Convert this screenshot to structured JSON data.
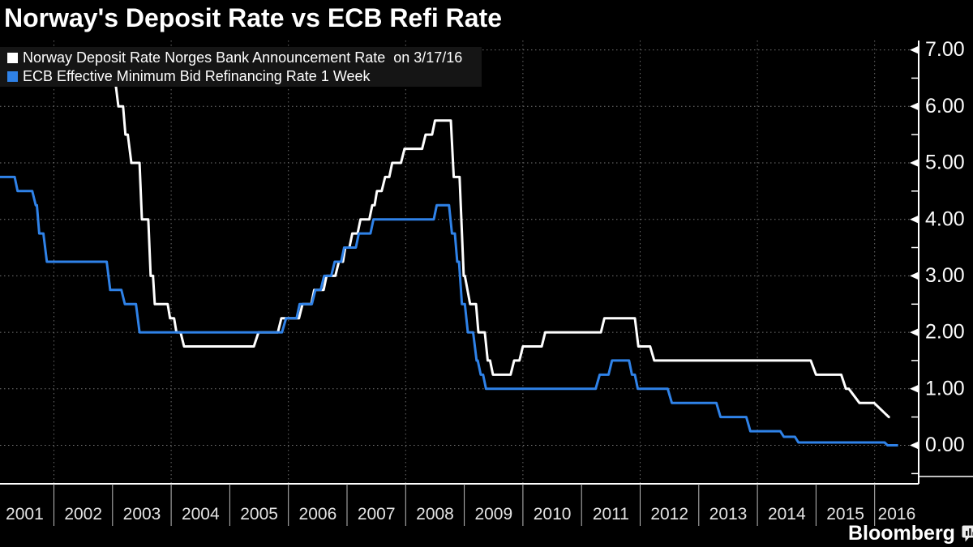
{
  "title": "Norway's Deposit Rate vs ECB Refi Rate",
  "branding": {
    "name": "Bloomberg",
    "icon": "bar-chart-bubble-icon"
  },
  "chart_data": {
    "type": "line",
    "title": "Norway's Deposit Rate vs ECB Refi Rate",
    "legend_position": "top-left",
    "grid": "dotted",
    "x_axis": {
      "tick_labels": [
        "2001",
        "2002",
        "2003",
        "2004",
        "2005",
        "2006",
        "2007",
        "2008",
        "2009",
        "2010",
        "2011",
        "2012",
        "2013",
        "2014",
        "2015",
        "2016"
      ],
      "range_years": [
        2001.08,
        2016.75
      ],
      "gridlines_at_years": [
        2002,
        2004,
        2006,
        2008,
        2010,
        2012,
        2014,
        2016
      ],
      "separators_at_years": [
        2002,
        2003,
        2004,
        2005,
        2006,
        2007,
        2008,
        2009,
        2010,
        2011,
        2012,
        2013,
        2014,
        2015,
        2016
      ]
    },
    "y_axis": {
      "position": "right",
      "tick_labels": [
        "7.00",
        "6.00",
        "5.00",
        "4.00",
        "3.00",
        "2.00",
        "1.00",
        "0.00"
      ],
      "tick_values": [
        7,
        6,
        5,
        4,
        3,
        2,
        1,
        0
      ],
      "minor_tick_values": [
        6.5,
        5.5,
        4.5,
        3.5,
        2.5,
        1.5,
        0.5,
        -0.5
      ],
      "range_displayed": [
        -0.68,
        7.17
      ]
    },
    "series": [
      {
        "name": "Norway Deposit Rate Norges Bank Announcement Rate  on 3/17/16",
        "color": "#ffffff",
        "points": [
          [
            2001.08,
            7
          ],
          [
            2002.93,
            7
          ],
          [
            2002.96,
            6.5
          ],
          [
            2003.04,
            6.5
          ],
          [
            2003.1,
            6
          ],
          [
            2003.18,
            6
          ],
          [
            2003.22,
            5.5
          ],
          [
            2003.26,
            5.5
          ],
          [
            2003.32,
            5
          ],
          [
            2003.46,
            5
          ],
          [
            2003.5,
            4
          ],
          [
            2003.61,
            4
          ],
          [
            2003.65,
            3
          ],
          [
            2003.69,
            3
          ],
          [
            2003.72,
            2.5
          ],
          [
            2003.94,
            2.5
          ],
          [
            2003.98,
            2.25
          ],
          [
            2004.05,
            2.25
          ],
          [
            2004.09,
            2
          ],
          [
            2004.16,
            2
          ],
          [
            2004.22,
            1.75
          ],
          [
            2005.41,
            1.75
          ],
          [
            2005.49,
            2
          ],
          [
            2005.82,
            2
          ],
          [
            2005.88,
            2.25
          ],
          [
            2006.18,
            2.25
          ],
          [
            2006.24,
            2.5
          ],
          [
            2006.39,
            2.5
          ],
          [
            2006.44,
            2.75
          ],
          [
            2006.6,
            2.75
          ],
          [
            2006.65,
            3
          ],
          [
            2006.8,
            3
          ],
          [
            2006.86,
            3.25
          ],
          [
            2006.93,
            3.25
          ],
          [
            2006.97,
            3.5
          ],
          [
            2007.04,
            3.5
          ],
          [
            2007.09,
            3.75
          ],
          [
            2007.18,
            3.75
          ],
          [
            2007.23,
            4
          ],
          [
            2007.38,
            4
          ],
          [
            2007.43,
            4.25
          ],
          [
            2007.47,
            4.25
          ],
          [
            2007.51,
            4.5
          ],
          [
            2007.59,
            4.5
          ],
          [
            2007.65,
            4.75
          ],
          [
            2007.72,
            4.75
          ],
          [
            2007.77,
            5
          ],
          [
            2007.92,
            5
          ],
          [
            2007.98,
            5.25
          ],
          [
            2008.28,
            5.25
          ],
          [
            2008.34,
            5.5
          ],
          [
            2008.45,
            5.5
          ],
          [
            2008.5,
            5.75
          ],
          [
            2008.77,
            5.75
          ],
          [
            2008.82,
            4.75
          ],
          [
            2008.92,
            4.75
          ],
          [
            2008.99,
            3
          ],
          [
            2009.01,
            3
          ],
          [
            2009.1,
            2.5
          ],
          [
            2009.2,
            2.5
          ],
          [
            2009.24,
            2
          ],
          [
            2009.35,
            2
          ],
          [
            2009.4,
            1.5
          ],
          [
            2009.44,
            1.5
          ],
          [
            2009.49,
            1.25
          ],
          [
            2009.79,
            1.25
          ],
          [
            2009.85,
            1.5
          ],
          [
            2009.94,
            1.5
          ],
          [
            2010.0,
            1.75
          ],
          [
            2010.32,
            1.75
          ],
          [
            2010.38,
            2
          ],
          [
            2011.33,
            2
          ],
          [
            2011.39,
            2.25
          ],
          [
            2011.91,
            2.25
          ],
          [
            2011.97,
            1.75
          ],
          [
            2012.17,
            1.75
          ],
          [
            2012.24,
            1.5
          ],
          [
            2014.91,
            1.5
          ],
          [
            2015.0,
            1.25
          ],
          [
            2015.43,
            1.25
          ],
          [
            2015.51,
            1
          ],
          [
            2015.56,
            1
          ],
          [
            2015.74,
            0.75
          ],
          [
            2015.99,
            0.75
          ],
          [
            2016.24,
            0.5
          ],
          [
            2016.26,
            0.5
          ]
        ]
      },
      {
        "name": "ECB Effective Minimum Bid Refinancing Rate 1 Week",
        "color": "#2f82e8",
        "points": [
          [
            2001.08,
            4.75
          ],
          [
            2001.33,
            4.75
          ],
          [
            2001.38,
            4.5
          ],
          [
            2001.63,
            4.5
          ],
          [
            2001.69,
            4.25
          ],
          [
            2001.71,
            4.25
          ],
          [
            2001.75,
            3.75
          ],
          [
            2001.82,
            3.75
          ],
          [
            2001.88,
            3.25
          ],
          [
            2002.9,
            3.25
          ],
          [
            2002.96,
            2.75
          ],
          [
            2003.15,
            2.75
          ],
          [
            2003.21,
            2.5
          ],
          [
            2003.4,
            2.5
          ],
          [
            2003.46,
            2
          ],
          [
            2005.89,
            2
          ],
          [
            2005.96,
            2.25
          ],
          [
            2006.14,
            2.25
          ],
          [
            2006.19,
            2.5
          ],
          [
            2006.4,
            2.5
          ],
          [
            2006.46,
            2.75
          ],
          [
            2006.55,
            2.75
          ],
          [
            2006.61,
            3
          ],
          [
            2006.73,
            3
          ],
          [
            2006.79,
            3.25
          ],
          [
            2006.9,
            3.25
          ],
          [
            2006.95,
            3.5
          ],
          [
            2007.15,
            3.5
          ],
          [
            2007.2,
            3.75
          ],
          [
            2007.4,
            3.75
          ],
          [
            2007.45,
            4
          ],
          [
            2008.48,
            4
          ],
          [
            2008.53,
            4.25
          ],
          [
            2008.74,
            4.25
          ],
          [
            2008.79,
            3.75
          ],
          [
            2008.84,
            3.75
          ],
          [
            2008.88,
            3.25
          ],
          [
            2008.91,
            3.25
          ],
          [
            2008.96,
            2.5
          ],
          [
            2009.01,
            2.5
          ],
          [
            2009.06,
            2
          ],
          [
            2009.15,
            2
          ],
          [
            2009.21,
            1.5
          ],
          [
            2009.23,
            1.5
          ],
          [
            2009.28,
            1.25
          ],
          [
            2009.32,
            1.25
          ],
          [
            2009.37,
            1
          ],
          [
            2011.24,
            1
          ],
          [
            2011.31,
            1.25
          ],
          [
            2011.46,
            1.25
          ],
          [
            2011.52,
            1.5
          ],
          [
            2011.81,
            1.5
          ],
          [
            2011.86,
            1.25
          ],
          [
            2011.91,
            1.25
          ],
          [
            2011.96,
            1
          ],
          [
            2012.47,
            1
          ],
          [
            2012.54,
            0.75
          ],
          [
            2013.3,
            0.75
          ],
          [
            2013.37,
            0.5
          ],
          [
            2013.81,
            0.5
          ],
          [
            2013.88,
            0.25
          ],
          [
            2014.39,
            0.25
          ],
          [
            2014.45,
            0.15
          ],
          [
            2014.64,
            0.15
          ],
          [
            2014.7,
            0.05
          ],
          [
            2016.17,
            0.05
          ],
          [
            2016.22,
            0
          ],
          [
            2016.4,
            0
          ]
        ]
      }
    ]
  }
}
